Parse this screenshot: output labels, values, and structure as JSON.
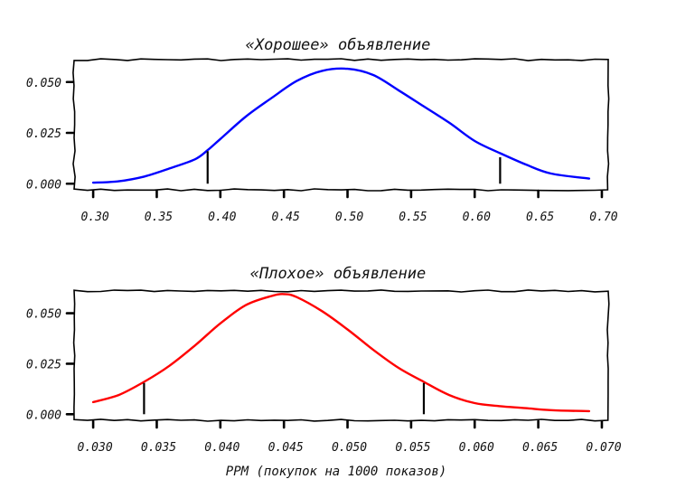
{
  "chart_data": [
    {
      "type": "line",
      "title": "«Хорошее» объявление",
      "xlabel": "",
      "ylabel": "",
      "xlim": [
        0.285,
        0.705
      ],
      "ylim": [
        -0.003,
        0.061
      ],
      "xticks": [
        0.3,
        0.35,
        0.4,
        0.45,
        0.5,
        0.55,
        0.6,
        0.65,
        0.7
      ],
      "xtick_labels": [
        "0.30",
        "0.35",
        "0.40",
        "0.45",
        "0.50",
        "0.55",
        "0.60",
        "0.65",
        "0.70"
      ],
      "yticks": [
        0.0,
        0.025,
        0.05
      ],
      "ytick_labels": [
        "0.000",
        "0.025",
        "0.050"
      ],
      "grid": false,
      "series": [
        {
          "color": "#0000ff",
          "x": [
            0.3,
            0.32,
            0.34,
            0.36,
            0.38,
            0.39,
            0.4,
            0.42,
            0.44,
            0.46,
            0.48,
            0.5,
            0.52,
            0.54,
            0.56,
            0.58,
            0.6,
            0.62,
            0.64,
            0.66,
            0.69
          ],
          "y": [
            0.0005,
            0.0012,
            0.0035,
            0.0075,
            0.012,
            0.0165,
            0.022,
            0.033,
            0.042,
            0.0505,
            0.0555,
            0.0565,
            0.0535,
            0.046,
            0.038,
            0.03,
            0.021,
            0.015,
            0.0095,
            0.005,
            0.0025
          ]
        }
      ],
      "interval_markers": [
        {
          "x": 0.39,
          "y_top": 0.016
        },
        {
          "x": 0.62,
          "y_top": 0.013
        }
      ]
    },
    {
      "type": "line",
      "title": "«Плохое» объявление",
      "xlabel": "PPM (покупок на 1000 показов)",
      "ylabel": "",
      "xlim": [
        0.0285,
        0.0705
      ],
      "ylim": [
        -0.003,
        0.061
      ],
      "xticks": [
        0.03,
        0.035,
        0.04,
        0.045,
        0.05,
        0.055,
        0.06,
        0.065,
        0.07
      ],
      "xtick_labels": [
        "0.030",
        "0.035",
        "0.040",
        "0.045",
        "0.050",
        "0.055",
        "0.060",
        "0.065",
        "0.070"
      ],
      "yticks": [
        0.0,
        0.025,
        0.05
      ],
      "ytick_labels": [
        "0.000",
        "0.025",
        "0.050"
      ],
      "grid": false,
      "series": [
        {
          "color": "#ff0000",
          "x": [
            0.03,
            0.032,
            0.034,
            0.036,
            0.038,
            0.04,
            0.042,
            0.044,
            0.045,
            0.046,
            0.048,
            0.05,
            0.052,
            0.054,
            0.056,
            0.058,
            0.06,
            0.062,
            0.064,
            0.066,
            0.069
          ],
          "y": [
            0.006,
            0.0095,
            0.016,
            0.024,
            0.034,
            0.045,
            0.054,
            0.0585,
            0.0595,
            0.058,
            0.051,
            0.042,
            0.032,
            0.023,
            0.016,
            0.0095,
            0.0055,
            0.004,
            0.003,
            0.002,
            0.0015
          ]
        }
      ],
      "interval_markers": [
        {
          "x": 0.034,
          "y_top": 0.0155
        },
        {
          "x": 0.056,
          "y_top": 0.0155
        }
      ]
    }
  ]
}
